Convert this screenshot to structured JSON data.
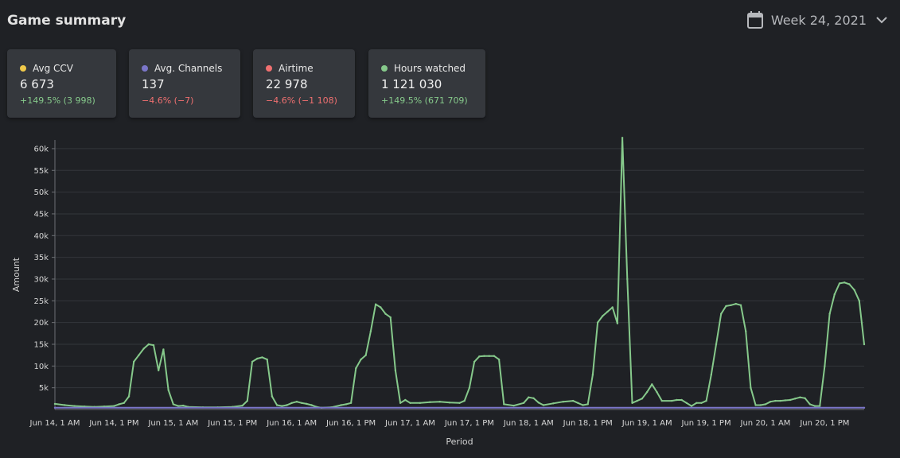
{
  "header": {
    "title": "Game summary",
    "week_label": "Week 24, 2021",
    "calendar_icon": "calendar-icon",
    "dropdown_icon": "chevron-down-icon"
  },
  "cards": [
    {
      "label": "Avg CCV",
      "value": "6 673",
      "change": "+149.5% (3 998)",
      "dot_color": "#f0c94a",
      "change_color": "#86c98b"
    },
    {
      "label": "Avg. Channels",
      "value": "137",
      "change": "−4.6% (−7)",
      "dot_color": "#7b76c9",
      "change_color": "#f07070"
    },
    {
      "label": "Airtime",
      "value": "22 978",
      "change": "−4.6% (−1 108)",
      "dot_color": "#f07070",
      "change_color": "#f07070"
    },
    {
      "label": "Hours watched",
      "value": "1 121 030",
      "change": "+149.5% (671 709)",
      "dot_color": "#86c98b",
      "change_color": "#86c98b"
    }
  ],
  "chart_data": {
    "type": "line",
    "xlabel": "Period",
    "ylabel": "Amount",
    "ylim": [
      0,
      62000
    ],
    "y_ticks": [
      5000,
      10000,
      15000,
      20000,
      25000,
      30000,
      35000,
      40000,
      45000,
      50000,
      55000,
      60000
    ],
    "y_tick_labels": [
      "5k",
      "10k",
      "15k",
      "20k",
      "25k",
      "30k",
      "35k",
      "40k",
      "45k",
      "50k",
      "55k",
      "60k"
    ],
    "x_tick_labels": [
      {
        "hour": 0,
        "label": "Jun 14, 1 AM"
      },
      {
        "hour": 12,
        "label": "Jun 14, 1 PM"
      },
      {
        "hour": 24,
        "label": "Jun 15, 1 AM"
      },
      {
        "hour": 36,
        "label": "Jun 15, 1 PM"
      },
      {
        "hour": 48,
        "label": "Jun 16, 1 AM"
      },
      {
        "hour": 60,
        "label": "Jun 16, 1 PM"
      },
      {
        "hour": 72,
        "label": "Jun 17, 1 AM"
      },
      {
        "hour": 84,
        "label": "Jun 17, 1 PM"
      },
      {
        "hour": 96,
        "label": "Jun 18, 1 AM"
      },
      {
        "hour": 108,
        "label": "Jun 18, 1 PM"
      },
      {
        "hour": 120,
        "label": "Jun 19, 1 AM"
      },
      {
        "hour": 132,
        "label": "Jun 19, 1 PM"
      },
      {
        "hour": 144,
        "label": "Jun 20, 1 AM"
      },
      {
        "hour": 156,
        "label": "Jun 20, 1 PM"
      }
    ],
    "grid": true,
    "series": [
      {
        "color": "#86c98b",
        "points": [
          [
            0,
            1300
          ],
          [
            2,
            1000
          ],
          [
            4,
            800
          ],
          [
            6,
            700
          ],
          [
            8,
            600
          ],
          [
            10,
            700
          ],
          [
            12,
            800
          ],
          [
            13,
            1200
          ],
          [
            14,
            1500
          ],
          [
            15,
            3000
          ],
          [
            16,
            11000
          ],
          [
            17,
            12500
          ],
          [
            18,
            14000
          ],
          [
            19,
            15000
          ],
          [
            20,
            14800
          ],
          [
            21,
            9000
          ],
          [
            22,
            13800
          ],
          [
            23,
            4500
          ],
          [
            24,
            1200
          ],
          [
            25,
            800
          ],
          [
            26,
            900
          ],
          [
            27,
            600
          ],
          [
            30,
            500
          ],
          [
            33,
            500
          ],
          [
            36,
            600
          ],
          [
            38,
            900
          ],
          [
            39,
            2000
          ],
          [
            40,
            11000
          ],
          [
            41,
            11700
          ],
          [
            42,
            12000
          ],
          [
            43,
            11500
          ],
          [
            44,
            3000
          ],
          [
            45,
            1000
          ],
          [
            46,
            800
          ],
          [
            47,
            1000
          ],
          [
            48,
            1500
          ],
          [
            49,
            1800
          ],
          [
            50,
            1500
          ],
          [
            51,
            1300
          ],
          [
            52,
            1000
          ],
          [
            53,
            600
          ],
          [
            54,
            400
          ],
          [
            56,
            500
          ],
          [
            58,
            1000
          ],
          [
            59,
            1200
          ],
          [
            60,
            1500
          ],
          [
            61,
            9500
          ],
          [
            62,
            11500
          ],
          [
            63,
            12500
          ],
          [
            64,
            18000
          ],
          [
            65,
            24200
          ],
          [
            66,
            23500
          ],
          [
            67,
            22000
          ],
          [
            68,
            21200
          ],
          [
            69,
            9000
          ],
          [
            70,
            1500
          ],
          [
            71,
            2200
          ],
          [
            72,
            1500
          ],
          [
            74,
            1500
          ],
          [
            76,
            1700
          ],
          [
            78,
            1800
          ],
          [
            80,
            1600
          ],
          [
            82,
            1500
          ],
          [
            83,
            2000
          ],
          [
            84,
            5000
          ],
          [
            85,
            11000
          ],
          [
            86,
            12200
          ],
          [
            87,
            12300
          ],
          [
            88,
            12300
          ],
          [
            89,
            12300
          ],
          [
            90,
            11500
          ],
          [
            91,
            1200
          ],
          [
            93,
            900
          ],
          [
            95,
            1500
          ],
          [
            96,
            2800
          ],
          [
            97,
            2600
          ],
          [
            98,
            1600
          ],
          [
            99,
            1000
          ],
          [
            101,
            1400
          ],
          [
            103,
            1800
          ],
          [
            105,
            2000
          ],
          [
            106,
            1500
          ],
          [
            107,
            1000
          ],
          [
            108,
            1200
          ],
          [
            109,
            8000
          ],
          [
            110,
            20000
          ],
          [
            111,
            21500
          ],
          [
            112,
            22500
          ],
          [
            113,
            23500
          ],
          [
            114,
            19800
          ],
          [
            115,
            62500
          ],
          [
            116,
            30000
          ],
          [
            117,
            1500
          ],
          [
            118,
            2000
          ],
          [
            119,
            2500
          ],
          [
            120,
            4000
          ],
          [
            121,
            5800
          ],
          [
            122,
            4000
          ],
          [
            123,
            2000
          ],
          [
            125,
            2000
          ],
          [
            126,
            2200
          ],
          [
            127,
            2200
          ],
          [
            128,
            1500
          ],
          [
            129,
            800
          ],
          [
            130,
            1500
          ],
          [
            131,
            1500
          ],
          [
            132,
            2000
          ],
          [
            133,
            8000
          ],
          [
            134,
            15000
          ],
          [
            135,
            22000
          ],
          [
            136,
            23800
          ],
          [
            137,
            24000
          ],
          [
            138,
            24300
          ],
          [
            139,
            24000
          ],
          [
            140,
            18000
          ],
          [
            141,
            5000
          ],
          [
            142,
            1000
          ],
          [
            143,
            1000
          ],
          [
            144,
            1200
          ],
          [
            145,
            1800
          ],
          [
            146,
            2000
          ],
          [
            147,
            2000
          ],
          [
            148,
            2100
          ],
          [
            149,
            2200
          ],
          [
            150,
            2500
          ],
          [
            151,
            2800
          ],
          [
            152,
            2600
          ],
          [
            153,
            1200
          ],
          [
            154,
            800
          ],
          [
            155,
            800
          ],
          [
            156,
            10000
          ],
          [
            157,
            22000
          ],
          [
            158,
            26500
          ],
          [
            159,
            29000
          ],
          [
            160,
            29200
          ],
          [
            161,
            28800
          ],
          [
            162,
            27500
          ],
          [
            163,
            25000
          ],
          [
            164,
            15000
          ]
        ]
      },
      {
        "color": "#7b76c9",
        "points": [
          [
            0,
            400
          ],
          [
            164,
            400
          ]
        ]
      }
    ]
  }
}
